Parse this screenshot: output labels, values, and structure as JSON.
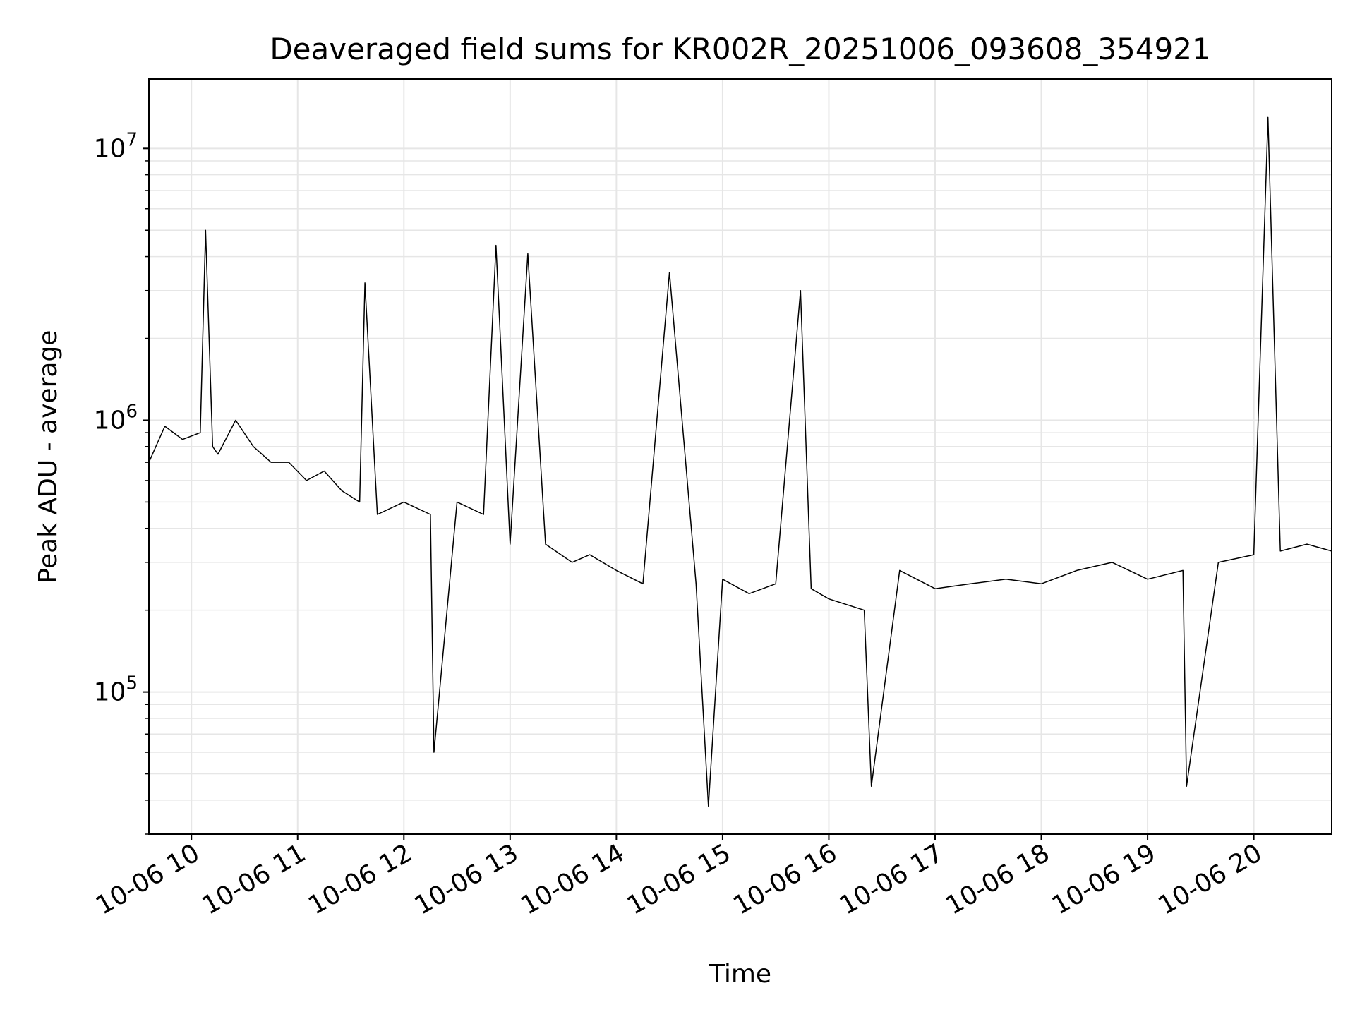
{
  "chart_data": {
    "type": "line",
    "title": "Deaveraged field sums for KR002R_20251006_093608_354921",
    "xlabel": "Time",
    "ylabel": "Peak ADU - average",
    "yscale": "log",
    "ylim": [
      30000,
      18000000
    ],
    "xlim": [
      "2025-10-06T09:36",
      "2025-10-06T20:44"
    ],
    "grid": true,
    "line_color": "#000000",
    "grid_color": "#e6e6e6",
    "x_ticks": [
      {
        "label": "10-06 10",
        "value": "2025-10-06T10:00"
      },
      {
        "label": "10-06 11",
        "value": "2025-10-06T11:00"
      },
      {
        "label": "10-06 12",
        "value": "2025-10-06T12:00"
      },
      {
        "label": "10-06 13",
        "value": "2025-10-06T13:00"
      },
      {
        "label": "10-06 14",
        "value": "2025-10-06T14:00"
      },
      {
        "label": "10-06 15",
        "value": "2025-10-06T15:00"
      },
      {
        "label": "10-06 16",
        "value": "2025-10-06T16:00"
      },
      {
        "label": "10-06 17",
        "value": "2025-10-06T17:00"
      },
      {
        "label": "10-06 18",
        "value": "2025-10-06T18:00"
      },
      {
        "label": "10-06 19",
        "value": "2025-10-06T19:00"
      },
      {
        "label": "10-06 20",
        "value": "2025-10-06T20:00"
      }
    ],
    "y_ticks": [
      {
        "base": "10",
        "exp": "5",
        "value": 100000
      },
      {
        "base": "10",
        "exp": "6",
        "value": 1000000
      },
      {
        "base": "10",
        "exp": "7",
        "value": 10000000
      }
    ],
    "series": [
      {
        "x": [
          "2025-10-06T09:36",
          "2025-10-06T09:45",
          "2025-10-06T09:55",
          "2025-10-06T10:05",
          "2025-10-06T10:08",
          "2025-10-06T10:12",
          "2025-10-06T10:15",
          "2025-10-06T10:25",
          "2025-10-06T10:35",
          "2025-10-06T10:45",
          "2025-10-06T10:55",
          "2025-10-06T11:05",
          "2025-10-06T11:15",
          "2025-10-06T11:25",
          "2025-10-06T11:35",
          "2025-10-06T11:38",
          "2025-10-06T11:45",
          "2025-10-06T12:00",
          "2025-10-06T12:15",
          "2025-10-06T12:17",
          "2025-10-06T12:30",
          "2025-10-06T12:45",
          "2025-10-06T12:52",
          "2025-10-06T13:00",
          "2025-10-06T13:10",
          "2025-10-06T13:20",
          "2025-10-06T13:35",
          "2025-10-06T13:45",
          "2025-10-06T14:00",
          "2025-10-06T14:15",
          "2025-10-06T14:30",
          "2025-10-06T14:45",
          "2025-10-06T14:52",
          "2025-10-06T15:00",
          "2025-10-06T15:15",
          "2025-10-06T15:30",
          "2025-10-06T15:44",
          "2025-10-06T15:50",
          "2025-10-06T16:00",
          "2025-10-06T16:20",
          "2025-10-06T16:24",
          "2025-10-06T16:40",
          "2025-10-06T17:00",
          "2025-10-06T17:20",
          "2025-10-06T17:40",
          "2025-10-06T18:00",
          "2025-10-06T18:20",
          "2025-10-06T18:40",
          "2025-10-06T19:00",
          "2025-10-06T19:20",
          "2025-10-06T19:22",
          "2025-10-06T19:40",
          "2025-10-06T20:00",
          "2025-10-06T20:08",
          "2025-10-06T20:15",
          "2025-10-06T20:30",
          "2025-10-06T20:44"
        ],
        "values": [
          700000,
          950000,
          850000,
          900000,
          5000000,
          800000,
          750000,
          1000000,
          800000,
          700000,
          700000,
          600000,
          650000,
          550000,
          500000,
          3200000,
          450000,
          500000,
          450000,
          60000,
          500000,
          450000,
          4400000,
          350000,
          4100000,
          350000,
          300000,
          320000,
          280000,
          250000,
          3500000,
          250000,
          38000,
          260000,
          230000,
          250000,
          3000000,
          240000,
          220000,
          200000,
          45000,
          280000,
          240000,
          250000,
          260000,
          250000,
          280000,
          300000,
          260000,
          280000,
          45000,
          300000,
          320000,
          13000000,
          330000,
          350000,
          330000
        ]
      }
    ]
  }
}
